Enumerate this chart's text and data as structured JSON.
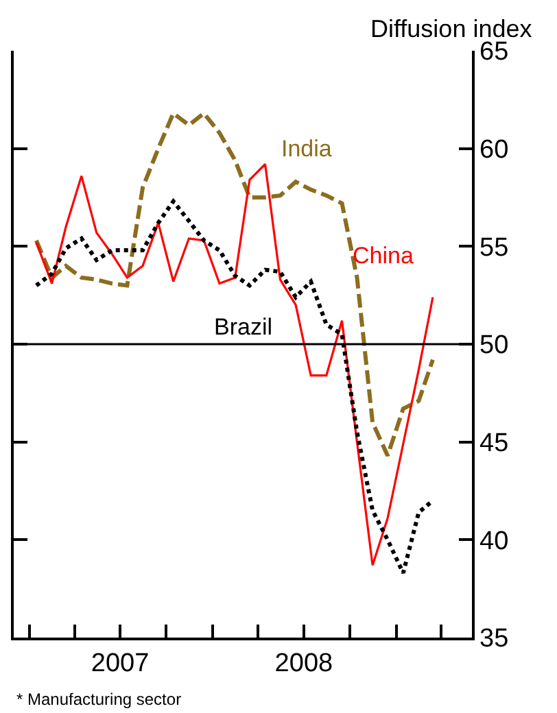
{
  "chart_data": {
    "type": "line",
    "ylabel": "Diffusion index",
    "x": [
      "2007-01-15",
      "2007-02-15",
      "2007-03-15",
      "2007-04-15",
      "2007-05-15",
      "2007-06-15",
      "2007-07-15",
      "2007-08-15",
      "2007-09-15",
      "2007-10-15",
      "2007-11-15",
      "2007-12-15",
      "2008-01-15",
      "2008-02-15",
      "2008-03-15",
      "2008-04-15",
      "2008-05-15",
      "2008-06-15",
      "2008-07-15",
      "2008-08-15",
      "2008-09-15",
      "2008-10-15",
      "2008-11-15",
      "2008-12-15",
      "2009-01-15",
      "2009-02-15",
      "2009-03-15"
    ],
    "series": [
      {
        "name": "India",
        "color": "#8c6d1f",
        "line_style": "dashed",
        "values": [
          55.3,
          53.4,
          54.0,
          53.4,
          53.3,
          53.1,
          53.0,
          58.0,
          60.0,
          61.8,
          61.2,
          61.8,
          60.8,
          59.4,
          57.5,
          57.5,
          57.6,
          58.3,
          57.9,
          57.6,
          57.2,
          53.4,
          46.0,
          44.3,
          46.7,
          47.1,
          49.2
        ]
      },
      {
        "name": "China",
        "color": "#ff0000",
        "line_style": "solid",
        "values": [
          55.2,
          53.1,
          56.0,
          58.6,
          55.7,
          54.6,
          53.4,
          54.0,
          56.2,
          53.2,
          55.4,
          55.3,
          53.1,
          53.4,
          58.4,
          59.2,
          53.3,
          52.0,
          48.4,
          48.4,
          51.2,
          45.0,
          38.7,
          41.1,
          44.9,
          48.7,
          52.4
        ]
      },
      {
        "name": "Brazil",
        "color": "#000000",
        "line_style": "dotted",
        "values": [
          53.0,
          53.6,
          54.9,
          55.4,
          54.3,
          54.8,
          54.8,
          54.8,
          56.2,
          57.3,
          56.3,
          55.3,
          54.8,
          53.5,
          53.0,
          53.8,
          53.7,
          52.4,
          53.2,
          51.0,
          50.5,
          45.5,
          41.5,
          40.0,
          38.3,
          41.4,
          42.0
        ]
      }
    ],
    "xlim": [
      "2006-12-01",
      "2009-06-01"
    ],
    "xticks": [
      {
        "value": "2007-01-01",
        "label": null
      },
      {
        "value": "2007-04-01",
        "label": null
      },
      {
        "value": "2007-07-01",
        "label": "2007"
      },
      {
        "value": "2007-10-01",
        "label": null
      },
      {
        "value": "2008-01-01",
        "label": null
      },
      {
        "value": "2008-04-01",
        "label": null
      },
      {
        "value": "2008-07-01",
        "label": "2008"
      },
      {
        "value": "2008-10-01",
        "label": null
      },
      {
        "value": "2009-01-01",
        "label": null
      },
      {
        "value": "2009-04-01",
        "label": null
      }
    ],
    "ylim": [
      35,
      65
    ],
    "yticks": [
      35,
      40,
      45,
      50,
      55,
      60,
      65
    ],
    "ref_lines": [
      {
        "axis": "y",
        "value": 50,
        "color": "#000000"
      }
    ],
    "annotations": [
      "* Manufacturing sector"
    ],
    "legend": false,
    "marker": "none"
  }
}
